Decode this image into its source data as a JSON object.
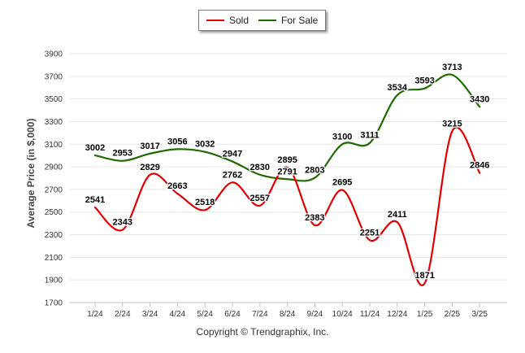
{
  "legend": {
    "sold_label": "Sold",
    "forsale_label": "For Sale"
  },
  "copyright": "Copyright © Trendgraphix, Inc.",
  "chart_data": {
    "type": "line",
    "ylabel": "Average Price (in $,000)",
    "categories": [
      "1/24",
      "2/24",
      "3/24",
      "4/24",
      "5/24",
      "6/24",
      "7/24",
      "8/24",
      "9/24",
      "10/24",
      "11/24",
      "12/24",
      "1/25",
      "2/25",
      "3/25"
    ],
    "ylim": [
      1700,
      3900
    ],
    "yticks": [
      1700,
      1900,
      2100,
      2300,
      2500,
      2700,
      2900,
      3100,
      3300,
      3500,
      3700,
      3900
    ],
    "grid": true,
    "legend_position": "top-center",
    "series": [
      {
        "name": "Sold",
        "color": "#e00000",
        "values": [
          2541,
          2343,
          2829,
          2663,
          2518,
          2762,
          2557,
          2895,
          2383,
          2695,
          2251,
          2411,
          1871,
          3215,
          2846
        ],
        "data_labels": [
          "2541",
          "2343",
          "2829",
          "2663",
          "2518",
          "2762",
          "2557",
          "2895",
          "2383",
          "2695",
          "2251",
          "2411",
          "1871",
          "3215",
          "2846"
        ]
      },
      {
        "name": "For Sale",
        "color": "#1e6b00",
        "values": [
          3002,
          2953,
          3017,
          3056,
          3032,
          2947,
          2830,
          2791,
          2803,
          3100,
          3111,
          3534,
          3593,
          3713,
          3430
        ],
        "data_labels": [
          "3002",
          "2953",
          "3017",
          "3056",
          "3032",
          "2947",
          "2830",
          "2791",
          "2803",
          "3100",
          "3111",
          "3534",
          "3593",
          "3713",
          "3430"
        ]
      }
    ]
  }
}
